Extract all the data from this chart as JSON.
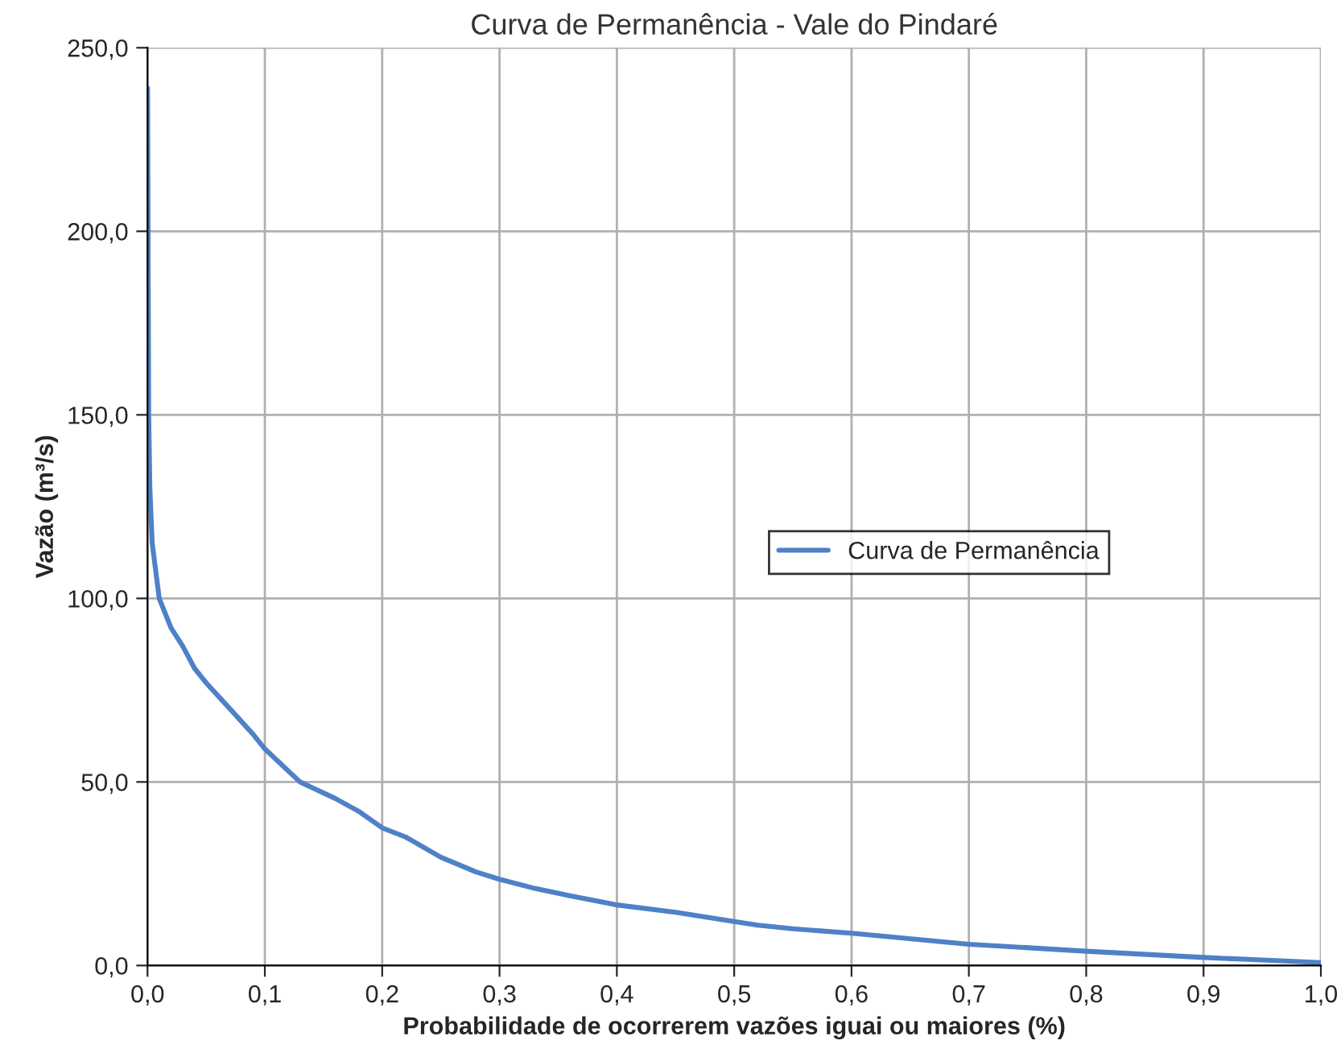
{
  "chart_data": {
    "type": "line",
    "title": "Curva de Permanência - Vale do Pindaré",
    "xlabel": "Probabilidade de ocorrerem vazões iguai ou maiores (%)",
    "ylabel": "Vazão (m³/s)",
    "series": [
      {
        "name": "Curva de Permanência",
        "color": "#4f81c7",
        "x": [
          0,
          0.001,
          0.002,
          0.004,
          0.01,
          0.02,
          0.03,
          0.04,
          0.05,
          0.07,
          0.09,
          0.1,
          0.12,
          0.13,
          0.14,
          0.16,
          0.18,
          0.2,
          0.22,
          0.25,
          0.28,
          0.3,
          0.33,
          0.36,
          0.4,
          0.45,
          0.5,
          0.52,
          0.55,
          0.6,
          0.7,
          0.8,
          0.9,
          0.95,
          1.0
        ],
        "values": [
          239,
          150,
          130,
          115,
          100,
          92,
          87,
          81,
          77,
          70,
          63,
          59,
          53,
          50,
          48.5,
          45.5,
          42,
          37.5,
          35,
          29.5,
          25.5,
          23.5,
          21,
          19,
          16.5,
          14.5,
          12,
          11,
          10,
          8.8,
          5.8,
          3.9,
          2.2,
          1.5,
          0.8
        ]
      }
    ],
    "xlim": [
      0,
      1
    ],
    "ylim": [
      0,
      250
    ],
    "xticks": [
      {
        "value": 0,
        "label": "0,0"
      },
      {
        "value": 0.1,
        "label": "0,1"
      },
      {
        "value": 0.2,
        "label": "0,2"
      },
      {
        "value": 0.3,
        "label": "0,3"
      },
      {
        "value": 0.4,
        "label": "0,4"
      },
      {
        "value": 0.5,
        "label": "0,5"
      },
      {
        "value": 0.6,
        "label": "0,6"
      },
      {
        "value": 0.7,
        "label": "0,7"
      },
      {
        "value": 0.8,
        "label": "0,8"
      },
      {
        "value": 0.9,
        "label": "0,9"
      },
      {
        "value": 1,
        "label": "1,0"
      }
    ],
    "yticks": [
      {
        "value": 0,
        "label": "0,0"
      },
      {
        "value": 50,
        "label": "50,0"
      },
      {
        "value": 100,
        "label": "100,0"
      },
      {
        "value": 150,
        "label": "150,0"
      },
      {
        "value": 200,
        "label": "200,0"
      },
      {
        "value": 250,
        "label": "250,0"
      }
    ],
    "grid": true,
    "legend": "center right",
    "marker": "none",
    "line_style": "solid"
  }
}
